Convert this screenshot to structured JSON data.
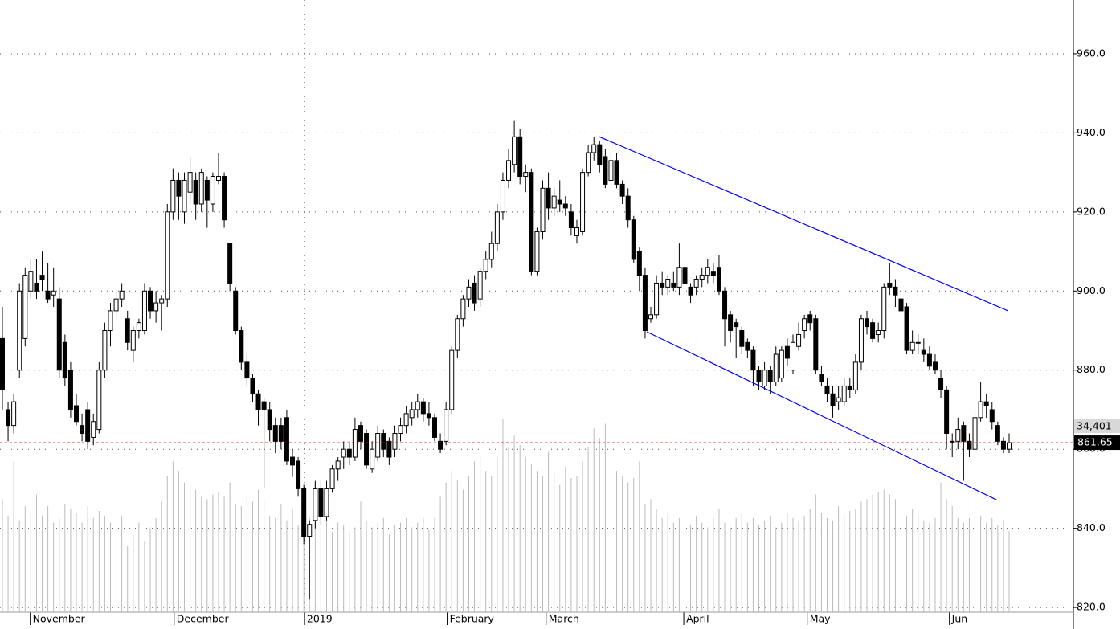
{
  "chart_data": {
    "type": "candlestick",
    "ohlc": [
      [
        888,
        896,
        870,
        875
      ],
      [
        870,
        872,
        862,
        866
      ],
      [
        866,
        874,
        864,
        872
      ],
      [
        880,
        902,
        878,
        900
      ],
      [
        888,
        906,
        886,
        904
      ],
      [
        900,
        908,
        898,
        905
      ],
      [
        902,
        908,
        898,
        900
      ],
      [
        904,
        910,
        900,
        903
      ],
      [
        900,
        907,
        897,
        898
      ],
      [
        899,
        906,
        896,
        900
      ],
      [
        898,
        901,
        878,
        880
      ],
      [
        887,
        889,
        876,
        878
      ],
      [
        880,
        882,
        868,
        870
      ],
      [
        871,
        874,
        866,
        867
      ],
      [
        866,
        869,
        862,
        864
      ],
      [
        870,
        872,
        860,
        862
      ],
      [
        863,
        869,
        861,
        867
      ],
      [
        865,
        882,
        864,
        880
      ],
      [
        880,
        892,
        878,
        890
      ],
      [
        890,
        897,
        886,
        895
      ],
      [
        895,
        900,
        893,
        898
      ],
      [
        898,
        902,
        896,
        900
      ],
      [
        893,
        895,
        885,
        887
      ],
      [
        885,
        891,
        882,
        890
      ],
      [
        890,
        893,
        888,
        892
      ],
      [
        890,
        902,
        889,
        900
      ],
      [
        900,
        901,
        893,
        895
      ],
      [
        895,
        900,
        892,
        897
      ],
      [
        897,
        899,
        890,
        898
      ],
      [
        898,
        922,
        896,
        920
      ],
      [
        920,
        931,
        918,
        928
      ],
      [
        928,
        930,
        918,
        924
      ],
      [
        920,
        930,
        917,
        928
      ],
      [
        925,
        934,
        922,
        930
      ],
      [
        928,
        930,
        918,
        922
      ],
      [
        922,
        931,
        920,
        930
      ],
      [
        928,
        929,
        916,
        923
      ],
      [
        922,
        930,
        920,
        929
      ],
      [
        928,
        935,
        927,
        929
      ],
      [
        929,
        930,
        916,
        918
      ],
      [
        912,
        912,
        900,
        902
      ],
      [
        900,
        901,
        889,
        890
      ],
      [
        890,
        891,
        880,
        882
      ],
      [
        882,
        884,
        876,
        878
      ],
      [
        878,
        879,
        872,
        874
      ],
      [
        874,
        875,
        866,
        870
      ],
      [
        872,
        873,
        850,
        870
      ],
      [
        870,
        872,
        862,
        865
      ],
      [
        866,
        868,
        859,
        862
      ],
      [
        866,
        868,
        860,
        862
      ],
      [
        868,
        870,
        856,
        857
      ],
      [
        858,
        860,
        853,
        856
      ],
      [
        857,
        858,
        848,
        850
      ],
      [
        850,
        851,
        836,
        838
      ],
      [
        838,
        842,
        822,
        841
      ],
      [
        842,
        852,
        840,
        850
      ],
      [
        850,
        852,
        841,
        843
      ],
      [
        843,
        852,
        842,
        850
      ],
      [
        850,
        856,
        849,
        855
      ],
      [
        855,
        858,
        852,
        857
      ],
      [
        858,
        862,
        855,
        860
      ],
      [
        860,
        862,
        856,
        858
      ],
      [
        858,
        868,
        857,
        865
      ],
      [
        866,
        867,
        860,
        862
      ],
      [
        864,
        865,
        855,
        856
      ],
      [
        855,
        862,
        854,
        860
      ],
      [
        858,
        866,
        857,
        864
      ],
      [
        864,
        865,
        858,
        860
      ],
      [
        862,
        863,
        856,
        858
      ],
      [
        860,
        866,
        858,
        864
      ],
      [
        864,
        868,
        862,
        866
      ],
      [
        866,
        871,
        864,
        869
      ],
      [
        868,
        872,
        866,
        870
      ],
      [
        870,
        874,
        868,
        872
      ],
      [
        872,
        873,
        867,
        869
      ],
      [
        869,
        872,
        866,
        868
      ],
      [
        868,
        869,
        862,
        863
      ],
      [
        862,
        864,
        859,
        860
      ],
      [
        862,
        872,
        861,
        870
      ],
      [
        870,
        886,
        869,
        885
      ],
      [
        885,
        894,
        883,
        893
      ],
      [
        893,
        899,
        891,
        898
      ],
      [
        898,
        903,
        896,
        901
      ],
      [
        902,
        904,
        895,
        897
      ],
      [
        898,
        906,
        896,
        905
      ],
      [
        905,
        910,
        903,
        908
      ],
      [
        908,
        915,
        906,
        912
      ],
      [
        912,
        922,
        910,
        920
      ],
      [
        920,
        930,
        918,
        928
      ],
      [
        928,
        936,
        926,
        933
      ],
      [
        932,
        943,
        930,
        939
      ],
      [
        939,
        941,
        927,
        929
      ],
      [
        929,
        932,
        925,
        930
      ],
      [
        930,
        931,
        904,
        905
      ],
      [
        905,
        916,
        904,
        915
      ],
      [
        915,
        928,
        913,
        926
      ],
      [
        926,
        930,
        918,
        921
      ],
      [
        921,
        926,
        919,
        924
      ],
      [
        923,
        928,
        920,
        922
      ],
      [
        922,
        924,
        919,
        921
      ],
      [
        920,
        922,
        914,
        916
      ],
      [
        914,
        918,
        912,
        916
      ],
      [
        915,
        931,
        914,
        930
      ],
      [
        930,
        937,
        929,
        935
      ],
      [
        935,
        939,
        933,
        937
      ],
      [
        937,
        938,
        930,
        932
      ],
      [
        934,
        936,
        926,
        927
      ],
      [
        928,
        935,
        926,
        933
      ],
      [
        933,
        935,
        926,
        927
      ],
      [
        927,
        928,
        922,
        924
      ],
      [
        924,
        926,
        916,
        918
      ],
      [
        918,
        919,
        907,
        908
      ],
      [
        910,
        911,
        900,
        904
      ],
      [
        904,
        906,
        888,
        890
      ],
      [
        893,
        896,
        892,
        894
      ],
      [
        894,
        904,
        893,
        902
      ],
      [
        902,
        905,
        899,
        901
      ],
      [
        901,
        904,
        899,
        903
      ],
      [
        902,
        905,
        900,
        901
      ],
      [
        901,
        912,
        899,
        906
      ],
      [
        906,
        907,
        901,
        902
      ],
      [
        901,
        902,
        897,
        899
      ],
      [
        901,
        904,
        899,
        903
      ],
      [
        903,
        906,
        901,
        904
      ],
      [
        904,
        908,
        902,
        906
      ],
      [
        905,
        907,
        902,
        904
      ],
      [
        906,
        909,
        899,
        900
      ],
      [
        900,
        901,
        886,
        893
      ],
      [
        894,
        895,
        887,
        890
      ],
      [
        892,
        893,
        883,
        891
      ],
      [
        890,
        891,
        884,
        886
      ],
      [
        887,
        888,
        883,
        885
      ],
      [
        885,
        886,
        876,
        880
      ],
      [
        880,
        881,
        875,
        877
      ],
      [
        876,
        882,
        875,
        880
      ],
      [
        880,
        881,
        874,
        877
      ],
      [
        877,
        886,
        876,
        884
      ],
      [
        878,
        886,
        877,
        885
      ],
      [
        886,
        888,
        881,
        883
      ],
      [
        880,
        889,
        879,
        887
      ],
      [
        886,
        892,
        885,
        889
      ],
      [
        890,
        894,
        888,
        893
      ],
      [
        894,
        895,
        890,
        892
      ],
      [
        893,
        894,
        879,
        880
      ],
      [
        879,
        881,
        876,
        877
      ],
      [
        876,
        878,
        872,
        874
      ],
      [
        874,
        876,
        868,
        871
      ],
      [
        872,
        876,
        870,
        873
      ],
      [
        872,
        878,
        871,
        876
      ],
      [
        876,
        878,
        873,
        875
      ],
      [
        875,
        884,
        874,
        882
      ],
      [
        882,
        894,
        880,
        893
      ],
      [
        893,
        895,
        889,
        891
      ],
      [
        892,
        893,
        887,
        888
      ],
      [
        889,
        892,
        887,
        890
      ],
      [
        890,
        902,
        888,
        901
      ],
      [
        902,
        907,
        899,
        901
      ],
      [
        901,
        903,
        896,
        899
      ],
      [
        898,
        899,
        893,
        895
      ],
      [
        896,
        897,
        884,
        885
      ],
      [
        885,
        890,
        884,
        887
      ],
      [
        887,
        889,
        884,
        887
      ],
      [
        885,
        888,
        882,
        884
      ],
      [
        884,
        886,
        880,
        881
      ],
      [
        882,
        884,
        879,
        880
      ],
      [
        878,
        880,
        873,
        875
      ],
      [
        875,
        876,
        860,
        864
      ],
      [
        862,
        864,
        858,
        862
      ],
      [
        862,
        868,
        860,
        865
      ],
      [
        866,
        867,
        852,
        862
      ],
      [
        862,
        864,
        858,
        860
      ],
      [
        860,
        870,
        859,
        868
      ],
      [
        868,
        877,
        867,
        872
      ],
      [
        872,
        874,
        868,
        871
      ],
      [
        870,
        872,
        865,
        867
      ],
      [
        866,
        867,
        861,
        862
      ],
      [
        862,
        863,
        859,
        860
      ],
      [
        860,
        864,
        859,
        861.65
      ]
    ],
    "volume": [
      48000,
      41000,
      64000,
      39000,
      45000,
      42000,
      50000,
      41000,
      45000,
      38000,
      40000,
      46000,
      44000,
      42000,
      38000,
      45000,
      40000,
      43000,
      41000,
      38000,
      36000,
      41000,
      28000,
      33000,
      38000,
      30000,
      36000,
      40000,
      47000,
      58000,
      64000,
      60000,
      55000,
      57000,
      52000,
      49000,
      48000,
      50000,
      51000,
      49000,
      55000,
      46000,
      45000,
      50000,
      47000,
      52000,
      48000,
      41000,
      40000,
      46000,
      39000,
      44000,
      37000,
      36000,
      40000,
      55000,
      42000,
      40000,
      34000,
      38000,
      37000,
      34000,
      36000,
      47000,
      39000,
      36000,
      38000,
      40000,
      33000,
      37000,
      38000,
      40000,
      36000,
      38000,
      40000,
      35000,
      40000,
      49000,
      55000,
      60000,
      56000,
      52000,
      58000,
      64000,
      66000,
      60000,
      58000,
      66000,
      82000,
      70000,
      75000,
      71000,
      66000,
      63000,
      60000,
      58000,
      68000,
      60000,
      54000,
      62000,
      57000,
      58000,
      64000,
      70000,
      78000,
      74000,
      80000,
      68000,
      60000,
      58000,
      55000,
      57000,
      64000,
      46000,
      48000,
      44000,
      40000,
      42000,
      38000,
      40000,
      39000,
      37000,
      41000,
      38000,
      36000,
      40000,
      44000,
      38000,
      36000,
      40000,
      42000,
      38000,
      40000,
      37000,
      39000,
      41000,
      36000,
      38000,
      42000,
      40000,
      39000,
      41000,
      44000,
      50000,
      42000,
      40000,
      39000,
      45000,
      41000,
      43000,
      44000,
      47000,
      48000,
      50000,
      51000,
      52000,
      50000,
      48000,
      46000,
      41000,
      44000,
      42000,
      39000,
      38000,
      40000,
      55000,
      48000,
      45000,
      40000,
      38000,
      40000,
      52000,
      41000,
      38000,
      40000,
      37000,
      39000,
      34401
    ],
    "volume_label": "34,401",
    "volume_ylim": [
      0,
      260000
    ],
    "xlim": [
      -0.42,
      188.3
    ],
    "xticks": [
      {
        "value": 4.9,
        "label": "November"
      },
      {
        "value": 30.2,
        "label": "December"
      },
      {
        "value": 53.1,
        "label": "2019"
      },
      {
        "value": 78.2,
        "label": "February"
      },
      {
        "value": 95.6,
        "label": "March"
      },
      {
        "value": 119.8,
        "label": "April"
      },
      {
        "value": 141.5,
        "label": "May"
      },
      {
        "value": 166.5,
        "label": "Jun"
      }
    ],
    "ylim": [
      818.8,
      973.6
    ],
    "yticks": [
      {
        "value": 820,
        "label": "820.0"
      },
      {
        "value": 840,
        "label": "840.0"
      },
      {
        "value": 860,
        "label": "860.0"
      },
      {
        "value": 880,
        "label": "880.0"
      },
      {
        "value": 900,
        "label": "900.0"
      },
      {
        "value": 920,
        "label": "920.0"
      },
      {
        "value": 940,
        "label": "940.0"
      },
      {
        "value": 960,
        "label": "960.0"
      }
    ],
    "grid": true,
    "trendlines": [
      {
        "x": [
          104.8,
          176.8
        ],
        "y": [
          939.1,
          895.0
        ],
        "color": "#0000ff"
      },
      {
        "x": [
          113.3,
          174.8
        ],
        "y": [
          889.7,
          847.2
        ],
        "color": "#0000ff"
      }
    ],
    "up_color": "#ffffff",
    "down_color": "#000000",
    "volume_color": "#bbbbbb",
    "last_line_color": "#e00000"
  }
}
